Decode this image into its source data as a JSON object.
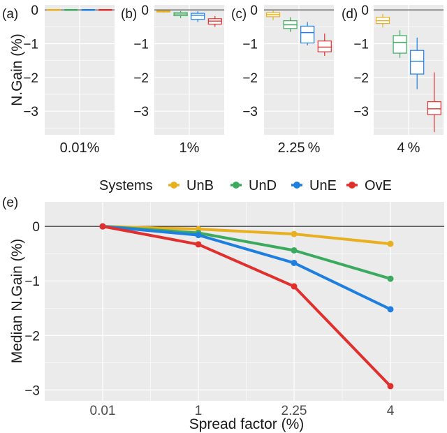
{
  "colors": {
    "UnB": "#E8AF1E",
    "UnD": "#3BAA5E",
    "UnE": "#1E7FE0",
    "OvE": "#E0302E",
    "panel_bg": "#EBEBEB",
    "grid": "#FFFFFF",
    "zero_line_top": "#6B6B6B",
    "zero_line_bottom": "#000000",
    "text": "#1A1A1A",
    "tick_text": "#4D4D4D"
  },
  "chart_data": [
    {
      "type": "boxplot",
      "panel_label": "(a)",
      "ylabel": "N.Gain (%)",
      "xlabel": "0.01%",
      "ylim": [
        -3.7,
        0.15
      ],
      "y_ticks": [
        0,
        -1,
        -2,
        -3
      ],
      "y_tick_labels": [
        "0",
        "−1",
        "−2",
        "−3"
      ],
      "grid": true,
      "boxes": [
        {
          "series": "UnB",
          "min": 0,
          "q1": 0,
          "median": 0,
          "q3": 0,
          "max": 0
        },
        {
          "series": "UnD",
          "min": 0,
          "q1": 0,
          "median": 0,
          "q3": 0,
          "max": 0
        },
        {
          "series": "UnE",
          "min": 0,
          "q1": 0,
          "median": 0,
          "q3": 0,
          "max": 0
        },
        {
          "series": "OvE",
          "min": 0,
          "q1": 0,
          "median": 0,
          "q3": 0,
          "max": 0
        }
      ]
    },
    {
      "type": "boxplot",
      "panel_label": "(b)",
      "xlabel": "1%",
      "ylim": [
        -3.7,
        0.15
      ],
      "y_ticks": [
        0,
        -1,
        -2,
        -3
      ],
      "y_tick_labels": [
        "0",
        "−1",
        "−2",
        "−3"
      ],
      "grid": true,
      "boxes": [
        {
          "series": "UnB",
          "min": -0.08,
          "q1": -0.06,
          "median": -0.05,
          "q3": -0.03,
          "max": -0.02
        },
        {
          "series": "UnD",
          "min": -0.24,
          "q1": -0.17,
          "median": -0.12,
          "q3": -0.08,
          "max": -0.03
        },
        {
          "series": "UnE",
          "min": -0.36,
          "q1": -0.28,
          "median": -0.16,
          "q3": -0.1,
          "max": -0.04
        },
        {
          "series": "OvE",
          "min": -0.5,
          "q1": -0.42,
          "median": -0.33,
          "q3": -0.26,
          "max": -0.18
        }
      ]
    },
    {
      "type": "boxplot",
      "panel_label": "(c)",
      "xlabel": "2.25 %",
      "ylim": [
        -3.7,
        0.15
      ],
      "y_ticks": [
        0,
        -1,
        -2,
        -3
      ],
      "y_tick_labels": [
        "0",
        "−1",
        "−2",
        "−3"
      ],
      "grid": true,
      "boxes": [
        {
          "series": "UnB",
          "min": -0.3,
          "q1": -0.2,
          "median": -0.14,
          "q3": -0.08,
          "max": -0.02
        },
        {
          "series": "UnD",
          "min": -0.65,
          "q1": -0.55,
          "median": -0.44,
          "q3": -0.32,
          "max": -0.22
        },
        {
          "series": "UnE",
          "min": -1.05,
          "q1": -0.98,
          "median": -0.67,
          "q3": -0.48,
          "max": -0.36
        },
        {
          "series": "OvE",
          "min": -1.36,
          "q1": -1.24,
          "median": -1.1,
          "q3": -0.92,
          "max": -0.7
        }
      ]
    },
    {
      "type": "boxplot",
      "panel_label": "(d)",
      "xlabel": "4 %",
      "ylim": [
        -3.7,
        0.15
      ],
      "y_ticks": [
        0,
        -1,
        -2,
        -3
      ],
      "y_tick_labels": [
        "0",
        "−1",
        "−2",
        "−3"
      ],
      "grid": true,
      "boxes": [
        {
          "series": "UnB",
          "min": -0.52,
          "q1": -0.4,
          "median": -0.32,
          "q3": -0.22,
          "max": -0.12
        },
        {
          "series": "UnD",
          "min": -1.42,
          "q1": -1.28,
          "median": -0.96,
          "q3": -0.76,
          "max": -0.6
        },
        {
          "series": "UnE",
          "min": -2.35,
          "q1": -1.9,
          "median": -1.52,
          "q3": -1.2,
          "max": -0.82
        },
        {
          "series": "OvE",
          "min": -3.62,
          "q1": -3.1,
          "median": -2.93,
          "q3": -2.72,
          "max": -1.85
        }
      ]
    },
    {
      "type": "line",
      "panel_label": "(e)",
      "legend_title": "Systems",
      "legend_position": "top",
      "xlabel": "Spread factor (%)",
      "ylabel": "Median N.Gain (%)",
      "categories": [
        "0.01",
        "1",
        "2.25",
        "4"
      ],
      "ylim": [
        -3.2,
        0.45
      ],
      "y_ticks": [
        0,
        -1,
        -2,
        -3
      ],
      "y_tick_labels": [
        "0",
        "−1",
        "−2",
        "−3"
      ],
      "grid": true,
      "series": [
        {
          "name": "UnB",
          "values": [
            0,
            -0.05,
            -0.14,
            -0.32
          ]
        },
        {
          "name": "UnD",
          "values": [
            0,
            -0.12,
            -0.44,
            -0.96
          ]
        },
        {
          "name": "UnE",
          "values": [
            0,
            -0.16,
            -0.67,
            -1.52
          ]
        },
        {
          "name": "OvE",
          "values": [
            0,
            -0.33,
            -1.1,
            -2.93
          ]
        }
      ]
    }
  ]
}
